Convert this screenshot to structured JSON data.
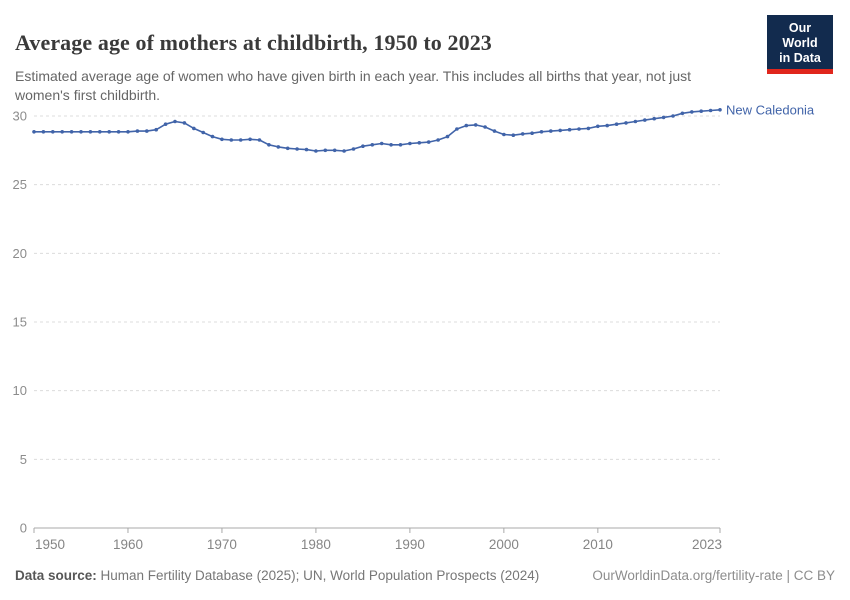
{
  "header": {
    "title": "Average age of mothers at childbirth, 1950 to 2023",
    "subtitle": "Estimated average age of women who have given birth in each year. This includes all births that year, not just women's first childbirth."
  },
  "logo": {
    "line1": "Our World",
    "line2": "in Data",
    "bg_color": "#122b4e",
    "accent_color": "#e0261c"
  },
  "chart_data": {
    "type": "line",
    "title": "Average age of mothers at childbirth, 1950 to 2023",
    "xlabel": "",
    "ylabel": "",
    "xlim": [
      1950,
      2023
    ],
    "ylim": [
      0,
      30
    ],
    "yticks": [
      0,
      5,
      10,
      15,
      20,
      25,
      30
    ],
    "xticks": [
      1950,
      1960,
      1970,
      1980,
      1990,
      2000,
      2010,
      2023
    ],
    "grid": "horizontal-dashed",
    "legend_position": "end-of-line-label",
    "x": [
      1950,
      1951,
      1952,
      1953,
      1954,
      1955,
      1956,
      1957,
      1958,
      1959,
      1960,
      1961,
      1962,
      1963,
      1964,
      1965,
      1966,
      1967,
      1968,
      1969,
      1970,
      1971,
      1972,
      1973,
      1974,
      1975,
      1976,
      1977,
      1978,
      1979,
      1980,
      1981,
      1982,
      1983,
      1984,
      1985,
      1986,
      1987,
      1988,
      1989,
      1990,
      1991,
      1992,
      1993,
      1994,
      1995,
      1996,
      1997,
      1998,
      1999,
      2000,
      2001,
      2002,
      2003,
      2004,
      2005,
      2006,
      2007,
      2008,
      2009,
      2010,
      2011,
      2012,
      2013,
      2014,
      2015,
      2016,
      2017,
      2018,
      2019,
      2020,
      2021,
      2022,
      2023
    ],
    "series": [
      {
        "name": "New Caledonia",
        "color": "#4164a9",
        "values": [
          28.85,
          28.85,
          28.85,
          28.85,
          28.85,
          28.85,
          28.85,
          28.85,
          28.85,
          28.85,
          28.85,
          28.9,
          28.9,
          29.0,
          29.4,
          29.6,
          29.5,
          29.1,
          28.8,
          28.5,
          28.3,
          28.25,
          28.25,
          28.3,
          28.25,
          27.9,
          27.75,
          27.65,
          27.6,
          27.55,
          27.45,
          27.5,
          27.5,
          27.45,
          27.6,
          27.8,
          27.9,
          28.0,
          27.9,
          27.9,
          28.0,
          28.05,
          28.1,
          28.25,
          28.5,
          29.05,
          29.3,
          29.35,
          29.2,
          28.9,
          28.65,
          28.6,
          28.7,
          28.75,
          28.85,
          28.9,
          28.95,
          29.0,
          29.05,
          29.1,
          29.25,
          29.3,
          29.4,
          29.5,
          29.6,
          29.7,
          29.8,
          29.9,
          30.0,
          30.2,
          30.3,
          30.35,
          30.4,
          30.45
        ]
      }
    ]
  },
  "footer": {
    "source_label": "Data source:",
    "source_text": " Human Fertility Database (2025); UN, World Population Prospects (2024)",
    "link_text": "OurWorldinData.org/fertility-rate | CC BY"
  }
}
